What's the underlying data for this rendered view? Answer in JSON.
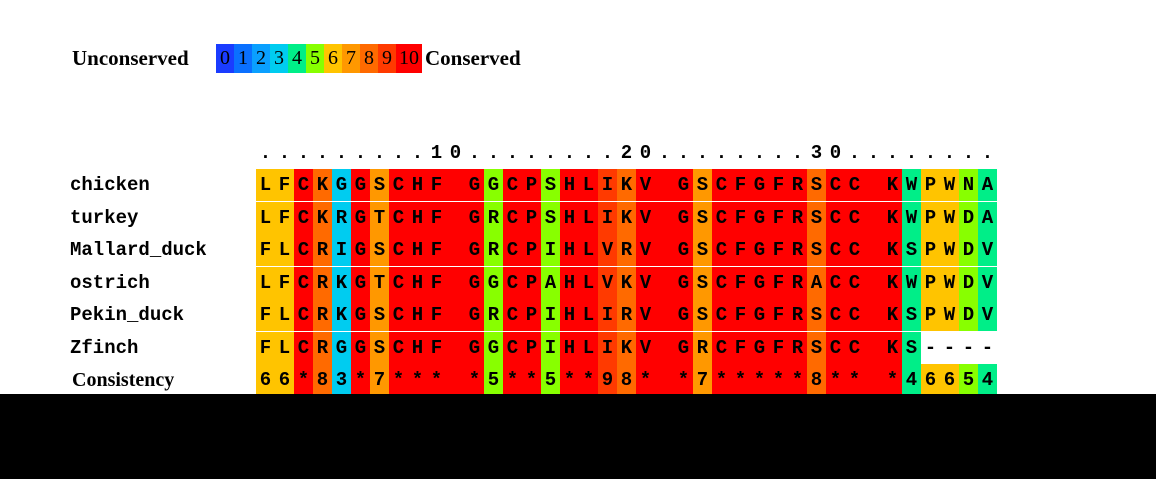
{
  "legend": {
    "left": "Unconserved",
    "right": "Conserved",
    "scale": [
      0,
      1,
      2,
      3,
      4,
      5,
      6,
      7,
      8,
      9,
      10
    ],
    "colors": [
      "#1a3cff",
      "#0a70ff",
      "#0aa0ff",
      "#00ccf0",
      "#00ee88",
      "#88ff00",
      "#ffc400",
      "#ff9800",
      "#ff6a00",
      "#ff3a00",
      "#ff0000"
    ]
  },
  "alignment": {
    "ruler": ".........10........20........30........",
    "rows": [
      {
        "name": "chicken",
        "sequence": "LFCKGGSCHF GGCPSHLIKV GSCFGFRSCC KWPWNA"
      },
      {
        "name": "turkey",
        "sequence": "LFCKRGTCHF GRCPSHLIKV GSCFGFRSCC KWPWDA"
      },
      {
        "name": "Mallard_duck",
        "sequence": "FLCRIGSCHF GRCPIHLVRV GSCFGFRSCC KSPWDV"
      },
      {
        "name": "ostrich",
        "sequence": "LFCRKGTCHF GGCPAHLVKV GSCFGFRACC KWPWDV"
      },
      {
        "name": "Pekin_duck",
        "sequence": "FLCRKGSCHF GRCPIHLIRV GSCFGFRSCC KSPWDV"
      },
      {
        "name": "Zfinch",
        "sequence": "FLCRGGSCHF GGCPIHLIKV GRCFGFRSCC KS----"
      }
    ],
    "consistency": {
      "label": "Consistency",
      "values": "66*83*7*** *5**5**98* *7*****8** *46654"
    }
  }
}
